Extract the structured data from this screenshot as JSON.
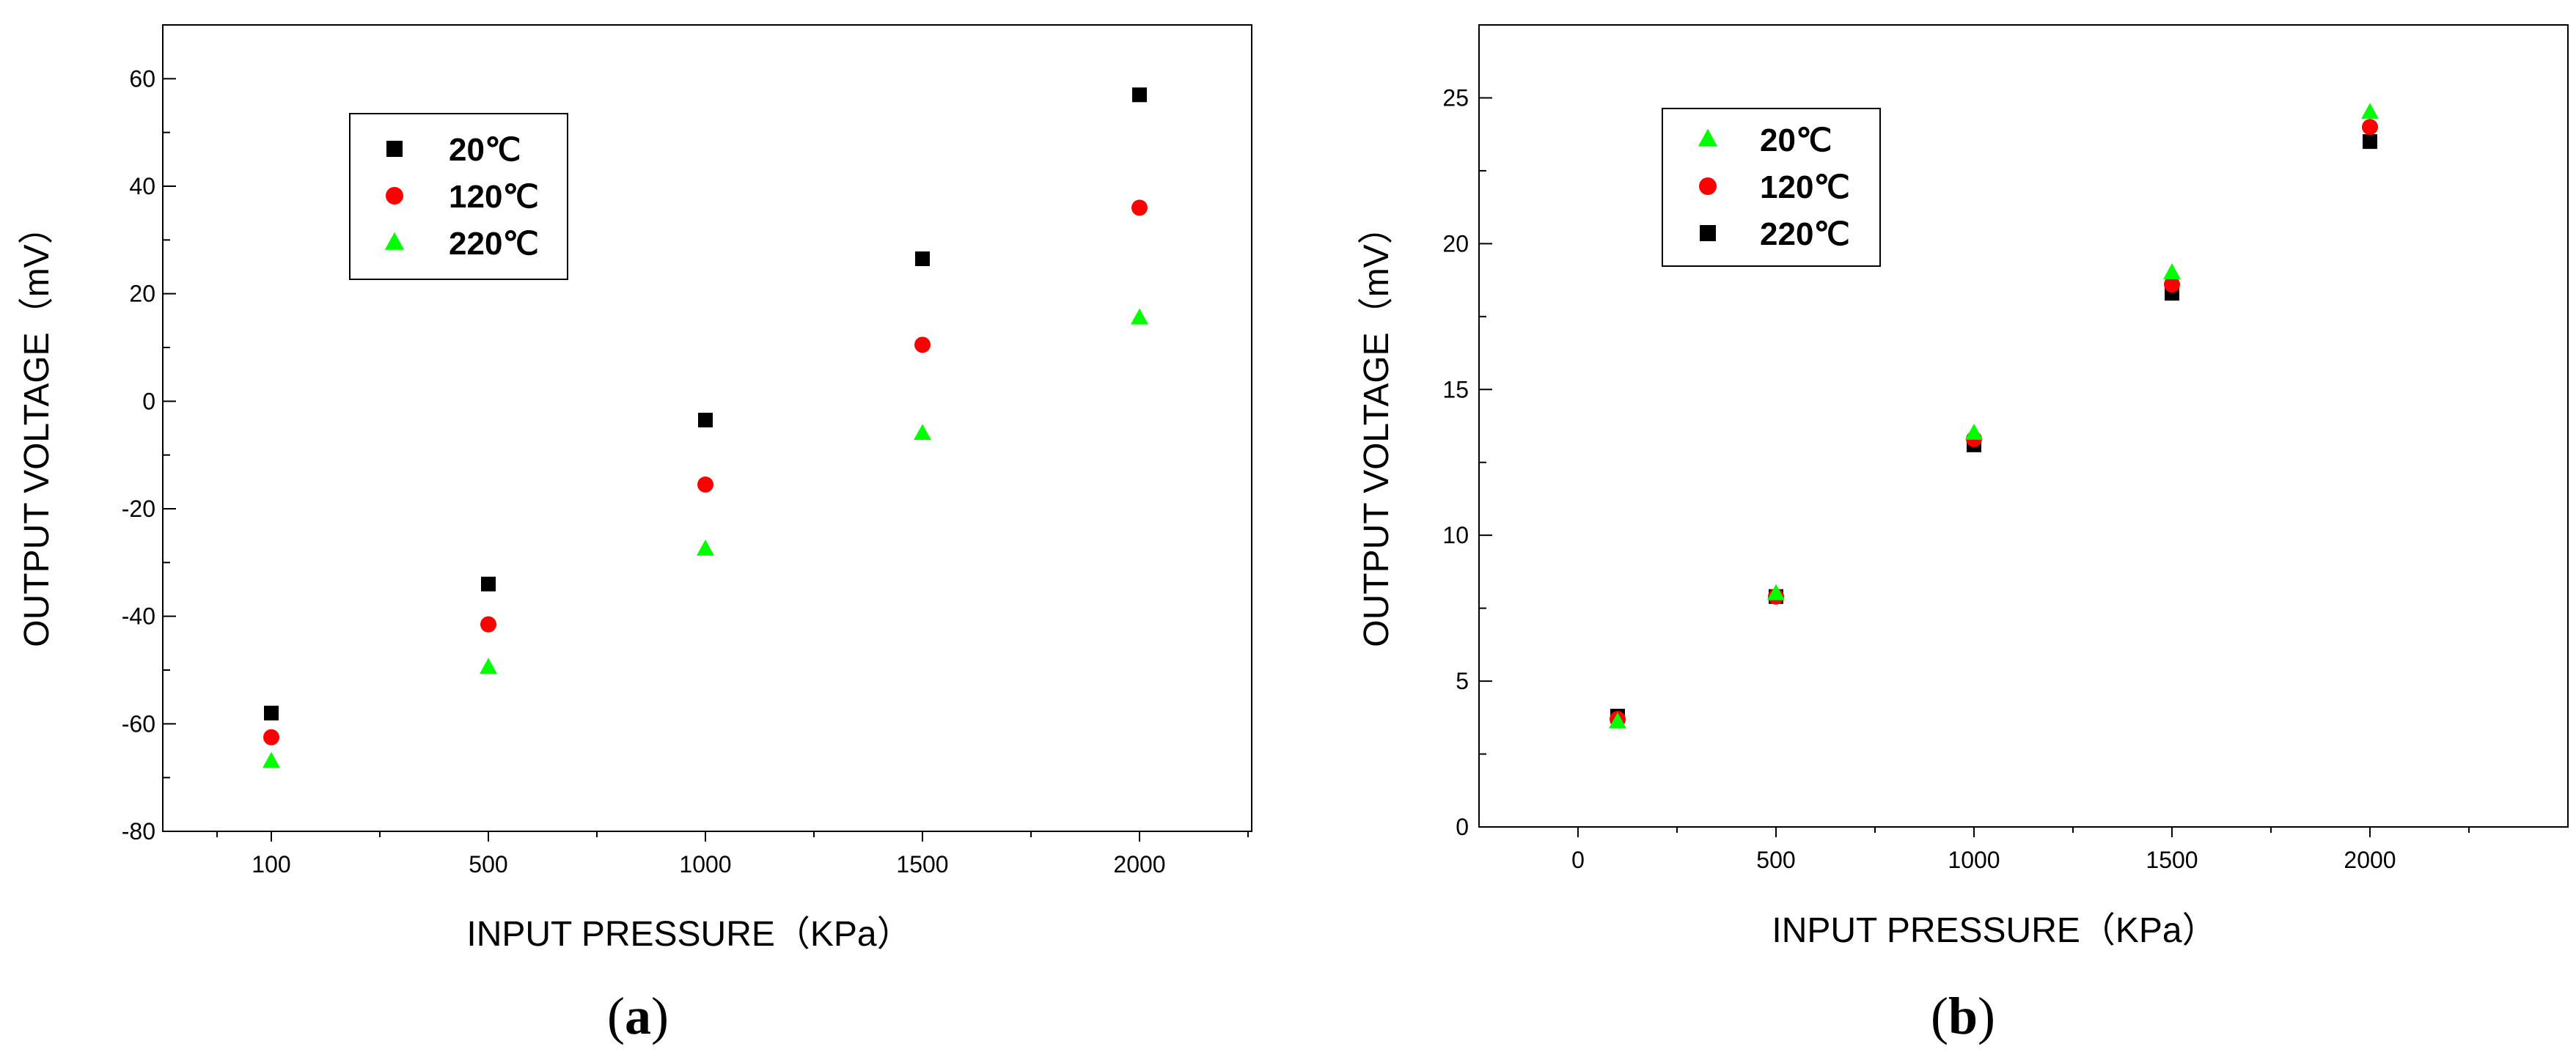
{
  "chart_data": [
    {
      "panel_label": "a",
      "type": "scatter",
      "xlabel": "INPUT PRESSURE（KPa）",
      "ylabel": "OUTPUT VOLTAGE（mV）",
      "x_categories": [
        "100",
        "500",
        "1000",
        "1500",
        "2000"
      ],
      "y_ticks": [
        "60",
        "40",
        "20",
        "0",
        "-20",
        "-40",
        "-60",
        "-80"
      ],
      "ylim": [
        -80,
        70
      ],
      "x_scale": "categorical",
      "grid": false,
      "legend_position": "top-left",
      "series": [
        {
          "name": "20℃",
          "marker": "square",
          "color": "#000000",
          "values": [
            -58,
            -34,
            -3.5,
            26.5,
            57
          ]
        },
        {
          "name": "120℃",
          "marker": "circle",
          "color": "#ff0000",
          "values": [
            -62.5,
            -41.5,
            -15.5,
            10.5,
            36
          ]
        },
        {
          "name": "220℃",
          "marker": "triangle",
          "color": "#00ff00",
          "values": [
            -67,
            -49.5,
            -27.5,
            -6,
            15.5
          ]
        }
      ]
    },
    {
      "panel_label": "b",
      "type": "scatter",
      "xlabel": "INPUT PRESSURE（KPa）",
      "ylabel": "OUTPUT VOLTAGE（mV）",
      "x_ticks": [
        "0",
        "500",
        "1000",
        "1500",
        "2000"
      ],
      "y_ticks": [
        "0",
        "5",
        "10",
        "15",
        "20",
        "25"
      ],
      "xlim": [
        -250,
        2500
      ],
      "ylim": [
        0,
        27.5
      ],
      "grid": false,
      "legend_position": "top-left",
      "series": [
        {
          "name": "20℃",
          "marker": "triangle",
          "color": "#00ff00",
          "x": [
            100,
            500,
            1000,
            1500,
            2000
          ],
          "values": [
            3.6,
            8.0,
            13.5,
            19.0,
            24.5
          ]
        },
        {
          "name": "120℃",
          "marker": "circle",
          "color": "#ff0000",
          "x": [
            100,
            500,
            1000,
            1500,
            2000
          ],
          "values": [
            3.7,
            7.9,
            13.3,
            18.6,
            24.0
          ]
        },
        {
          "name": "220℃",
          "marker": "square",
          "color": "#000000",
          "x": [
            100,
            500,
            1000,
            1500,
            2000
          ],
          "values": [
            3.8,
            7.9,
            13.1,
            18.3,
            23.5
          ]
        }
      ]
    }
  ]
}
